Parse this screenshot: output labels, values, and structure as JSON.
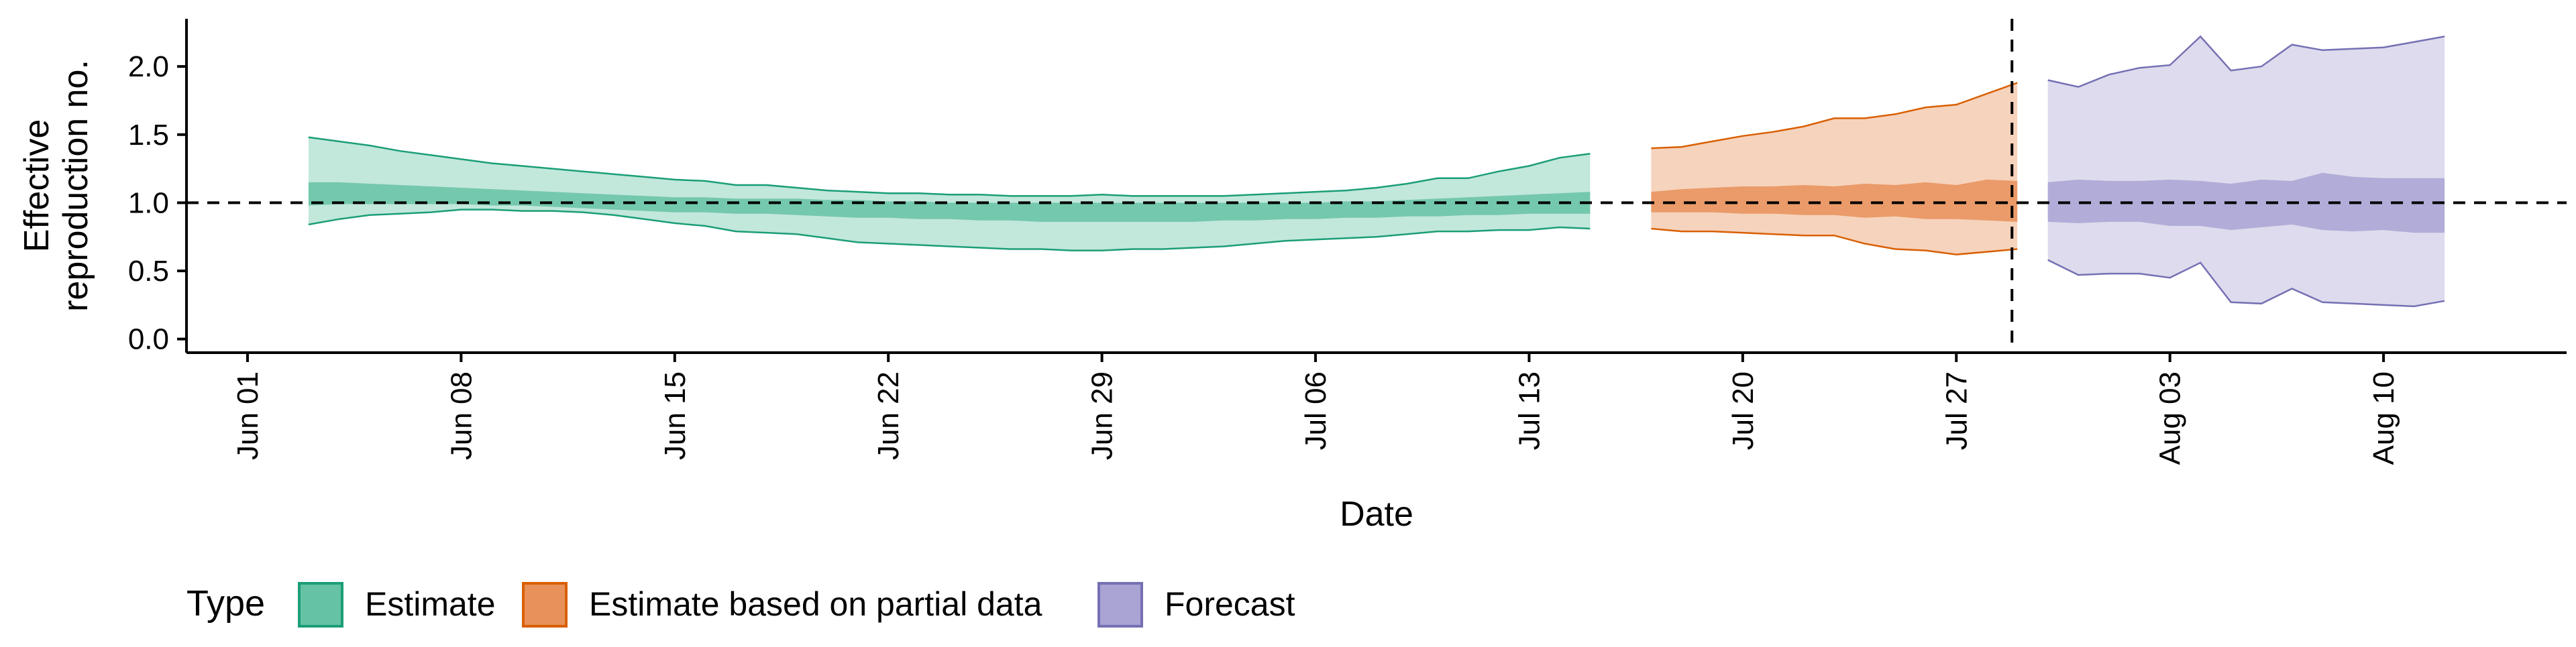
{
  "chart_data": {
    "type": "area",
    "xlabel": "Date",
    "ylabel_lines": [
      "Effective",
      "reproduction no."
    ],
    "ylim": [
      -0.1,
      2.35
    ],
    "xlim": [
      "2020-05-30",
      "2020-08-16"
    ],
    "yticks": [
      {
        "value": 0.0,
        "label": "0.0"
      },
      {
        "value": 0.5,
        "label": "0.5"
      },
      {
        "value": 1.0,
        "label": "1.0"
      },
      {
        "value": 1.5,
        "label": "1.5"
      },
      {
        "value": 2.0,
        "label": "2.0"
      }
    ],
    "xticks": [
      {
        "value": "2020-06-01",
        "label": "Jun 01"
      },
      {
        "value": "2020-06-08",
        "label": "Jun 08"
      },
      {
        "value": "2020-06-15",
        "label": "Jun 15"
      },
      {
        "value": "2020-06-22",
        "label": "Jun 22"
      },
      {
        "value": "2020-06-29",
        "label": "Jun 29"
      },
      {
        "value": "2020-07-06",
        "label": "Jul 06"
      },
      {
        "value": "2020-07-13",
        "label": "Jul 13"
      },
      {
        "value": "2020-07-20",
        "label": "Jul 20"
      },
      {
        "value": "2020-07-27",
        "label": "Jul 27"
      },
      {
        "value": "2020-08-03",
        "label": "Aug 03"
      },
      {
        "value": "2020-08-10",
        "label": "Aug 10"
      }
    ],
    "reference_line_y": 1.0,
    "vertical_reference_x": "2020-07-29",
    "grid": false,
    "legend": {
      "title": "Type",
      "position": "bottom-left",
      "items": [
        {
          "label": "Estimate",
          "fill": "#66c2a5",
          "stroke": "#1b9e77"
        },
        {
          "label": "Estimate based on partial data",
          "fill": "#e8915a",
          "stroke": "#d95f02"
        },
        {
          "label": "Forecast",
          "fill": "#a9a4d3",
          "stroke": "#7570b3"
        }
      ]
    },
    "series": [
      {
        "name": "Estimate",
        "color": "#1b9e77",
        "fill": "#66c2a5",
        "x": [
          "2020-06-03",
          "2020-06-04",
          "2020-06-05",
          "2020-06-06",
          "2020-06-07",
          "2020-06-08",
          "2020-06-09",
          "2020-06-10",
          "2020-06-11",
          "2020-06-12",
          "2020-06-13",
          "2020-06-14",
          "2020-06-15",
          "2020-06-16",
          "2020-06-17",
          "2020-06-18",
          "2020-06-19",
          "2020-06-20",
          "2020-06-21",
          "2020-06-22",
          "2020-06-23",
          "2020-06-24",
          "2020-06-25",
          "2020-06-26",
          "2020-06-27",
          "2020-06-28",
          "2020-06-29",
          "2020-06-30",
          "2020-07-01",
          "2020-07-02",
          "2020-07-03",
          "2020-07-04",
          "2020-07-05",
          "2020-07-06",
          "2020-07-07",
          "2020-07-08",
          "2020-07-09",
          "2020-07-10",
          "2020-07-11",
          "2020-07-12",
          "2020-07-13",
          "2020-07-14",
          "2020-07-15"
        ],
        "outer_upper": [
          1.48,
          1.45,
          1.42,
          1.38,
          1.35,
          1.32,
          1.29,
          1.27,
          1.25,
          1.23,
          1.21,
          1.19,
          1.17,
          1.16,
          1.13,
          1.13,
          1.11,
          1.09,
          1.08,
          1.07,
          1.07,
          1.06,
          1.06,
          1.05,
          1.05,
          1.05,
          1.06,
          1.05,
          1.05,
          1.05,
          1.05,
          1.06,
          1.07,
          1.08,
          1.09,
          1.11,
          1.14,
          1.18,
          1.18,
          1.23,
          1.27,
          1.33,
          1.36
        ],
        "outer_lower": [
          0.84,
          0.88,
          0.91,
          0.92,
          0.93,
          0.95,
          0.95,
          0.94,
          0.94,
          0.93,
          0.91,
          0.88,
          0.85,
          0.83,
          0.79,
          0.78,
          0.77,
          0.74,
          0.71,
          0.7,
          0.69,
          0.68,
          0.67,
          0.66,
          0.66,
          0.65,
          0.65,
          0.66,
          0.66,
          0.67,
          0.68,
          0.7,
          0.72,
          0.73,
          0.74,
          0.75,
          0.77,
          0.79,
          0.79,
          0.8,
          0.8,
          0.82,
          0.81
        ],
        "inner_upper": [
          1.15,
          1.15,
          1.14,
          1.13,
          1.12,
          1.11,
          1.1,
          1.09,
          1.08,
          1.07,
          1.06,
          1.05,
          1.04,
          1.04,
          1.03,
          1.03,
          1.03,
          1.02,
          1.02,
          1.01,
          1.01,
          1.0,
          1.0,
          1.0,
          1.0,
          1.0,
          1.0,
          1.0,
          1.0,
          1.0,
          1.0,
          1.0,
          1.0,
          1.0,
          1.01,
          1.01,
          1.02,
          1.03,
          1.04,
          1.05,
          1.06,
          1.07,
          1.08
        ],
        "inner_lower": [
          0.98,
          0.99,
          0.99,
          0.99,
          0.99,
          0.99,
          0.98,
          0.98,
          0.97,
          0.96,
          0.95,
          0.94,
          0.93,
          0.93,
          0.92,
          0.92,
          0.91,
          0.9,
          0.89,
          0.89,
          0.88,
          0.88,
          0.87,
          0.87,
          0.86,
          0.86,
          0.86,
          0.86,
          0.86,
          0.86,
          0.87,
          0.87,
          0.88,
          0.88,
          0.89,
          0.89,
          0.9,
          0.9,
          0.91,
          0.91,
          0.92,
          0.92,
          0.92
        ]
      },
      {
        "name": "Estimate based on partial data",
        "color": "#d95f02",
        "fill": "#e8915a",
        "x": [
          "2020-07-17",
          "2020-07-18",
          "2020-07-19",
          "2020-07-20",
          "2020-07-21",
          "2020-07-22",
          "2020-07-23",
          "2020-07-24",
          "2020-07-25",
          "2020-07-26",
          "2020-07-27",
          "2020-07-28",
          "2020-07-29"
        ],
        "outer_upper": [
          1.4,
          1.41,
          1.45,
          1.49,
          1.52,
          1.56,
          1.62,
          1.62,
          1.65,
          1.7,
          1.72,
          1.8,
          1.88
        ],
        "outer_lower": [
          0.81,
          0.79,
          0.79,
          0.78,
          0.77,
          0.76,
          0.76,
          0.7,
          0.66,
          0.65,
          0.62,
          0.64,
          0.66
        ],
        "inner_upper": [
          1.08,
          1.1,
          1.11,
          1.12,
          1.12,
          1.13,
          1.12,
          1.14,
          1.13,
          1.15,
          1.13,
          1.17,
          1.16
        ],
        "inner_lower": [
          0.93,
          0.93,
          0.93,
          0.92,
          0.92,
          0.91,
          0.91,
          0.89,
          0.9,
          0.88,
          0.88,
          0.87,
          0.86
        ]
      },
      {
        "name": "Forecast",
        "color": "#7570b3",
        "fill": "#a9a4d3",
        "x": [
          "2020-07-30",
          "2020-07-31",
          "2020-08-01",
          "2020-08-02",
          "2020-08-03",
          "2020-08-04",
          "2020-08-05",
          "2020-08-06",
          "2020-08-07",
          "2020-08-08",
          "2020-08-09",
          "2020-08-10",
          "2020-08-11",
          "2020-08-12"
        ],
        "outer_upper": [
          1.9,
          1.85,
          1.94,
          1.99,
          2.01,
          2.22,
          1.97,
          2.0,
          2.16,
          2.12,
          2.13,
          2.14,
          2.18,
          2.22
        ],
        "outer_lower": [
          0.58,
          0.47,
          0.48,
          0.48,
          0.45,
          0.56,
          0.27,
          0.26,
          0.37,
          0.27,
          0.26,
          0.25,
          0.24,
          0.28
        ],
        "inner_upper": [
          1.15,
          1.17,
          1.16,
          1.16,
          1.17,
          1.16,
          1.14,
          1.17,
          1.16,
          1.22,
          1.19,
          1.18,
          1.18,
          1.18
        ],
        "inner_lower": [
          0.86,
          0.85,
          0.86,
          0.86,
          0.83,
          0.83,
          0.8,
          0.82,
          0.84,
          0.8,
          0.79,
          0.8,
          0.78,
          0.78
        ]
      }
    ]
  }
}
